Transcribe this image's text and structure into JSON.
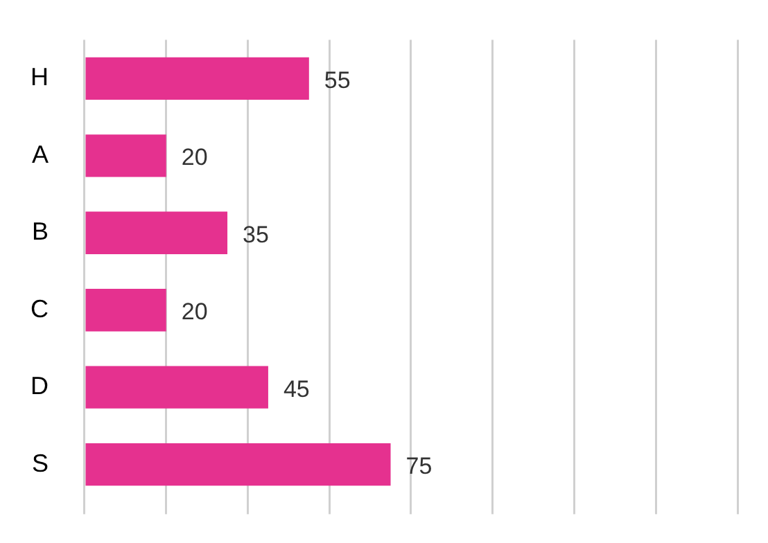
{
  "chart_data": {
    "type": "bar",
    "orientation": "horizontal",
    "categories": [
      "H",
      "A",
      "B",
      "C",
      "D",
      "S"
    ],
    "values": [
      55,
      20,
      35,
      20,
      45,
      75
    ],
    "color": "#e5318f",
    "data_labels": true,
    "xlim": [
      0,
      160
    ],
    "xticks": [
      {
        "value": 0,
        "label": null
      },
      {
        "value": 20,
        "label": null
      },
      {
        "value": 40,
        "label": null
      },
      {
        "value": 60,
        "label": null
      },
      {
        "value": 80,
        "label": null
      },
      {
        "value": 100,
        "label": null
      },
      {
        "value": 120,
        "label": null
      },
      {
        "value": 140,
        "label": null
      },
      {
        "value": 160,
        "label": null
      }
    ],
    "grid": "x",
    "tick_labels": "y"
  }
}
